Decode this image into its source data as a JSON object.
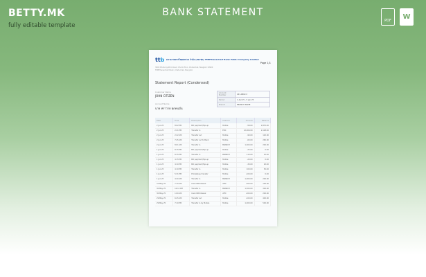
{
  "header": {
    "brand": "BETTY.MK",
    "tagline": "fully editable template",
    "title": "BANK STATEMENT",
    "formats": [
      {
        "icon": "pdf-file-icon",
        "label": "PDF"
      },
      {
        "icon": "word-file-icon",
        "label": "W"
      }
    ]
  },
  "document": {
    "logo": "ttb",
    "bank_name": "ธนาคารทหารไทยธนชาต จำกัด (มหาชน) TMBThanachart Bank Public Company Limited",
    "page": "Page 1/1",
    "address": [
      "3000 Phahonyothin Road, Chom Phon, Chatuchak, Bangkok 10900",
      "TMBThanachart Bank, Chatuchak, Bangkok"
    ],
    "report_title": "Statement Report (Condensed)",
    "customer_label": "Customer Name",
    "customer_name": "JOHN CITIZEN",
    "account_label": "Account Name",
    "account_name": "นาย ทราวาย ทุกคนมั่น",
    "info": [
      [
        "Account Number",
        "221-4802-3"
      ],
      [
        "Period",
        "1 Apr 25 - 5 Jun 25"
      ],
      [
        "Branch",
        "BRANCH NAME"
      ]
    ],
    "columns": [
      "Date",
      "Time",
      "Description",
      "Channel",
      "Amount",
      "Balance"
    ],
    "rows": [
      [
        "2 Jun 25",
        "8:02 PM",
        "Bill payment/Top-up",
        "Mobile",
        "-58.00",
        "2,870.00"
      ],
      [
        "2 Jun 25",
        "2:21 PM",
        "Transfer in",
        "EDC",
        "12,000.00",
        "2,128.00"
      ],
      [
        "2 Jun 25",
        "2:22 AM",
        "Transfer out",
        "Mobile",
        "-90.00",
        "120.00"
      ],
      [
        "2 Jun 25",
        "7:45 AM",
        "Transfer out to Bank",
        "Mobile",
        "-60.00",
        "260.00"
      ],
      [
        "2 Jun 25",
        "8:01 AM",
        "Transfer in",
        "BRANCH",
        "1,000.00",
        "200.00"
      ],
      [
        "1 Jun 25",
        "8:15 PM",
        "Bill payment/Top-up",
        "Mobile",
        "-25.00",
        "0.00"
      ],
      [
        "1 Jun 25",
        "8:15 PM",
        "Transfer in",
        "BRANCH",
        "110.00",
        "10.00"
      ],
      [
        "1 Jun 25",
        "4:15 PM",
        "Bill payment/Top-up",
        "Mobile",
        "-20.00",
        "0.00"
      ],
      [
        "1 Jun 25",
        "4:10 PM",
        "Bill payment/Top-up",
        "Mobile",
        "-30.00",
        "20.00"
      ],
      [
        "1 Jun 25",
        "4:10 PM",
        "Transfer in",
        "Mobile",
        "100.00",
        "50.00"
      ],
      [
        "1 Jun 25",
        "5:31 PM",
        "Promptpay transfer",
        "Mobile",
        "-100.00",
        "0.00"
      ],
      [
        "1 Jun 25",
        "4:20 AM",
        "Transfer in",
        "BRANCH",
        "1,000.00",
        "200.00"
      ],
      [
        "31 May 25",
        "7:10 AM",
        "Cash Withdrawal",
        "ATM",
        "-300.00",
        "100.00"
      ],
      [
        "30 May 25",
        "12:12 PM",
        "Transfer in",
        "BRANCH",
        "1,500.00",
        "300.00"
      ],
      [
        "30 May 25",
        "1:00 AM",
        "Cash Withdrawal",
        "ATM",
        "-200.00",
        "200.00"
      ],
      [
        "29 May 25",
        "6:45 AM",
        "Transfer out",
        "Mobile",
        "-100.00",
        "400.00"
      ],
      [
        "29 May 25",
        "7:10 PM",
        "Transfer in by Mobile",
        "Mobile",
        "1,000.00",
        "500.00"
      ]
    ]
  }
}
